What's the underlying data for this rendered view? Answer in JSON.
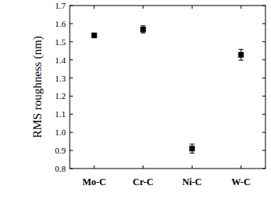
{
  "chart_data": {
    "type": "scatter",
    "y_label": "RMS roughness (nm)",
    "categories": [
      "Mo-C",
      "Cr-C",
      "Ni-C",
      "W-C"
    ],
    "values": [
      1.535,
      1.568,
      0.91,
      1.428
    ],
    "errors": [
      0.01,
      0.02,
      0.025,
      0.03
    ],
    "color": "#000000",
    "marker": "square",
    "ylim": [
      0.8,
      1.7
    ],
    "yticks": [
      0.8,
      0.9,
      {
        "value": 1,
        "label": "1.0"
      },
      1.1,
      1.2,
      1.3,
      1.4,
      1.5,
      1.6,
      1.7
    ],
    "grid": false
  }
}
